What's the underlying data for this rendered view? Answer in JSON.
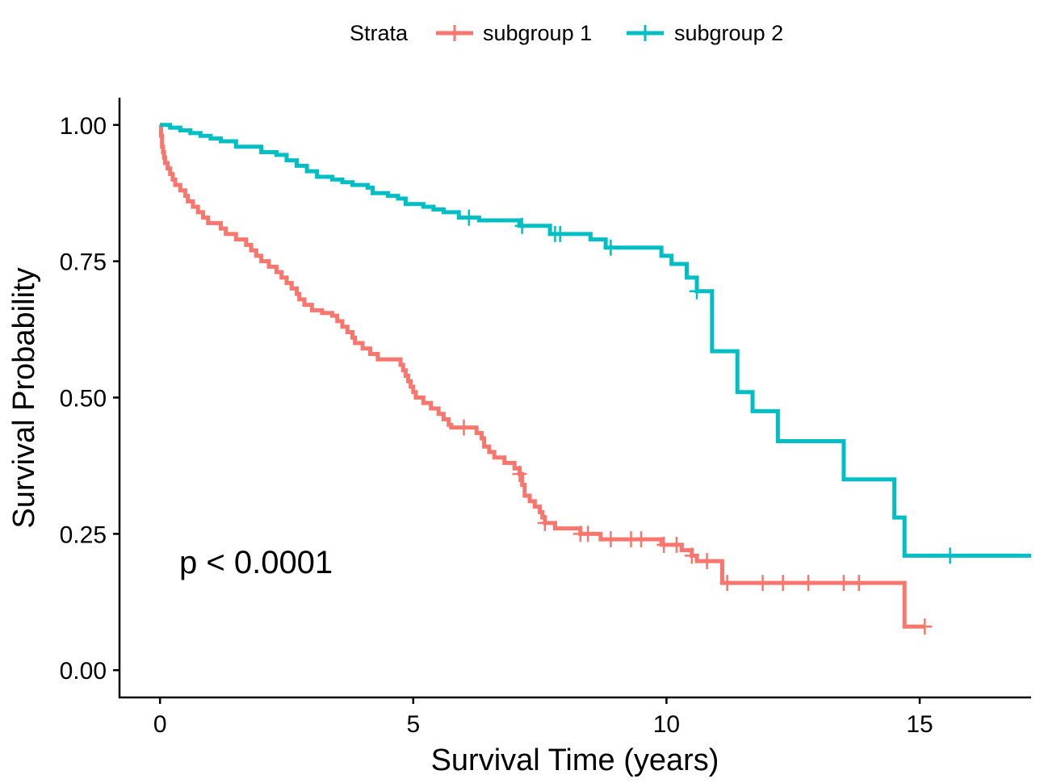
{
  "chart_data": {
    "type": "line",
    "subtype": "kaplan-meier",
    "title": "",
    "xlabel": "Survival Time (years)",
    "ylabel": "Survival Probability",
    "xlim": [
      -0.8,
      17.2
    ],
    "ylim": [
      -0.05,
      1.05
    ],
    "x_ticks": [
      0,
      5,
      10,
      15
    ],
    "x_tick_labels": [
      "0",
      "5",
      "10",
      "15"
    ],
    "y_ticks": [
      0,
      0.25,
      0.5,
      0.75,
      1
    ],
    "y_tick_labels": [
      "0.00",
      "0.25",
      "0.50",
      "0.75",
      "1.00"
    ],
    "grid": false,
    "legend": {
      "title": "Strata",
      "position": "top",
      "entries": [
        "subgroup 1",
        "subgroup 2"
      ]
    },
    "annotation": {
      "text": "p < 0.0001",
      "x": 0.35,
      "y": 0.19
    },
    "series": [
      {
        "name": "subgroup 1",
        "color": "#F8766D",
        "steps": [
          [
            0,
            1.0
          ],
          [
            0.02,
            0.98
          ],
          [
            0.04,
            0.96
          ],
          [
            0.06,
            0.95
          ],
          [
            0.08,
            0.94
          ],
          [
            0.1,
            0.93
          ],
          [
            0.15,
            0.92
          ],
          [
            0.2,
            0.91
          ],
          [
            0.25,
            0.9
          ],
          [
            0.3,
            0.89
          ],
          [
            0.4,
            0.88
          ],
          [
            0.5,
            0.87
          ],
          [
            0.55,
            0.86
          ],
          [
            0.65,
            0.85
          ],
          [
            0.75,
            0.84
          ],
          [
            0.85,
            0.83
          ],
          [
            0.95,
            0.82
          ],
          [
            1.2,
            0.81
          ],
          [
            1.3,
            0.8
          ],
          [
            1.5,
            0.79
          ],
          [
            1.7,
            0.78
          ],
          [
            1.8,
            0.77
          ],
          [
            1.9,
            0.76
          ],
          [
            2.0,
            0.75
          ],
          [
            2.15,
            0.74
          ],
          [
            2.3,
            0.73
          ],
          [
            2.4,
            0.72
          ],
          [
            2.5,
            0.71
          ],
          [
            2.6,
            0.7
          ],
          [
            2.7,
            0.69
          ],
          [
            2.75,
            0.68
          ],
          [
            2.85,
            0.67
          ],
          [
            3.0,
            0.66
          ],
          [
            3.2,
            0.655
          ],
          [
            3.4,
            0.65
          ],
          [
            3.5,
            0.64
          ],
          [
            3.6,
            0.63
          ],
          [
            3.7,
            0.62
          ],
          [
            3.8,
            0.61
          ],
          [
            3.85,
            0.6
          ],
          [
            4.0,
            0.59
          ],
          [
            4.15,
            0.58
          ],
          [
            4.3,
            0.57
          ],
          [
            4.75,
            0.56
          ],
          [
            4.8,
            0.55
          ],
          [
            4.85,
            0.54
          ],
          [
            4.9,
            0.53
          ],
          [
            4.95,
            0.52
          ],
          [
            5.0,
            0.51
          ],
          [
            5.05,
            0.5
          ],
          [
            5.2,
            0.49
          ],
          [
            5.35,
            0.48
          ],
          [
            5.5,
            0.47
          ],
          [
            5.6,
            0.46
          ],
          [
            5.7,
            0.45
          ],
          [
            5.75,
            0.445
          ],
          [
            6.25,
            0.435
          ],
          [
            6.35,
            0.425
          ],
          [
            6.4,
            0.41
          ],
          [
            6.5,
            0.4
          ],
          [
            6.6,
            0.39
          ],
          [
            6.8,
            0.38
          ],
          [
            7.0,
            0.37
          ],
          [
            7.1,
            0.36
          ],
          [
            7.15,
            0.34
          ],
          [
            7.2,
            0.32
          ],
          [
            7.3,
            0.31
          ],
          [
            7.4,
            0.3
          ],
          [
            7.5,
            0.29
          ],
          [
            7.55,
            0.28
          ],
          [
            7.6,
            0.27
          ],
          [
            7.8,
            0.26
          ],
          [
            8.3,
            0.25
          ],
          [
            8.7,
            0.24
          ],
          [
            9.9,
            0.23
          ],
          [
            10.3,
            0.22
          ],
          [
            10.5,
            0.21
          ],
          [
            10.6,
            0.2
          ],
          [
            11.1,
            0.16
          ],
          [
            14.7,
            0.08
          ],
          [
            15.1,
            0.08
          ]
        ],
        "censor_x": [
          6.0,
          7.1,
          7.6,
          8.3,
          8.45,
          8.9,
          9.3,
          9.5,
          9.95,
          10.2,
          10.5,
          10.8,
          11.2,
          11.9,
          12.3,
          12.8,
          13.5,
          13.8,
          15.1
        ]
      },
      {
        "name": "subgroup 2",
        "color": "#00BFC4",
        "steps": [
          [
            0,
            1.0
          ],
          [
            0.2,
            0.995
          ],
          [
            0.4,
            0.99
          ],
          [
            0.6,
            0.985
          ],
          [
            0.8,
            0.98
          ],
          [
            1.0,
            0.975
          ],
          [
            1.2,
            0.97
          ],
          [
            1.5,
            0.96
          ],
          [
            2.0,
            0.95
          ],
          [
            2.3,
            0.945
          ],
          [
            2.5,
            0.935
          ],
          [
            2.7,
            0.925
          ],
          [
            2.9,
            0.915
          ],
          [
            3.1,
            0.905
          ],
          [
            3.4,
            0.9
          ],
          [
            3.6,
            0.895
          ],
          [
            3.8,
            0.89
          ],
          [
            4.1,
            0.885
          ],
          [
            4.2,
            0.875
          ],
          [
            4.5,
            0.87
          ],
          [
            4.7,
            0.865
          ],
          [
            4.85,
            0.855
          ],
          [
            5.2,
            0.85
          ],
          [
            5.4,
            0.845
          ],
          [
            5.6,
            0.84
          ],
          [
            5.9,
            0.83
          ],
          [
            6.3,
            0.825
          ],
          [
            7.1,
            0.815
          ],
          [
            7.7,
            0.8
          ],
          [
            8.5,
            0.79
          ],
          [
            8.8,
            0.775
          ],
          [
            9.9,
            0.76
          ],
          [
            10.1,
            0.745
          ],
          [
            10.4,
            0.72
          ],
          [
            10.6,
            0.695
          ],
          [
            10.9,
            0.585
          ],
          [
            11.4,
            0.51
          ],
          [
            11.7,
            0.475
          ],
          [
            12.2,
            0.42
          ],
          [
            13.5,
            0.35
          ],
          [
            14.5,
            0.28
          ],
          [
            14.7,
            0.21
          ],
          [
            17.2,
            0.21
          ]
        ],
        "censor_x": [
          6.1,
          7.15,
          7.8,
          7.9,
          8.9,
          10.6,
          15.6
        ]
      }
    ]
  }
}
